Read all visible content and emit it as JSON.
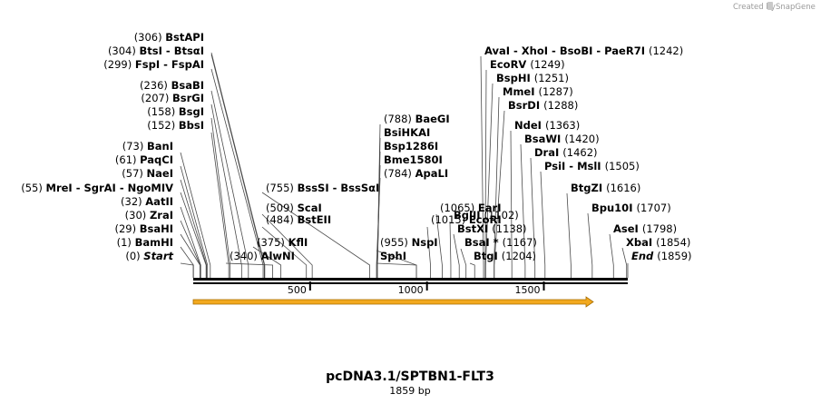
{
  "credit": {
    "text": "Created by",
    "brand": "SnapGene"
  },
  "map": {
    "title": "pcDNA3.1/SPTBN1-FLT3",
    "length_label": "1859 bp",
    "total_bp": 1859,
    "ticks": [
      "500",
      "1000",
      "1500"
    ],
    "feature_color": "#f2a91e"
  },
  "sites": [
    {
      "pos": "(306)",
      "name": "BstAPI",
      "bp": 306
    },
    {
      "pos": "(304)",
      "name": "BtsI  -  BtsαI",
      "bp": 304
    },
    {
      "pos": "(299)",
      "name": "FspI  -  FspAI",
      "bp": 299
    },
    {
      "pos": "(236)",
      "name": "BsaBI",
      "bp": 236
    },
    {
      "pos": "(207)",
      "name": "BsrGI",
      "bp": 207
    },
    {
      "pos": "(158)",
      "name": "BsgI",
      "bp": 158
    },
    {
      "pos": "(152)",
      "name": "BbsI",
      "bp": 152
    },
    {
      "pos": "(73)",
      "name": "BanI",
      "bp": 73
    },
    {
      "pos": "(61)",
      "name": "PaqCI",
      "bp": 61
    },
    {
      "pos": "(57)",
      "name": "NaeI",
      "bp": 57
    },
    {
      "pos": "(55)",
      "name": "MreI  -  SgrAI  -  NgoMIV",
      "bp": 55
    },
    {
      "pos": "(32)",
      "name": "AatII",
      "bp": 32
    },
    {
      "pos": "(30)",
      "name": "ZraI",
      "bp": 30
    },
    {
      "pos": "(29)",
      "name": "BsaHI",
      "bp": 29
    },
    {
      "pos": "(1)",
      "name": "BamHI",
      "bp": 1
    },
    {
      "pos": "(0)",
      "name": "Start",
      "bp": 0,
      "italic": true
    },
    {
      "pos": "(340)",
      "name": "AlwNI",
      "bp": 340
    },
    {
      "pos": "(375)",
      "name": "KflI",
      "bp": 375
    },
    {
      "pos": "(484)",
      "name": "BstEII",
      "bp": 484
    },
    {
      "pos": "(509)",
      "name": "ScaI",
      "bp": 509
    },
    {
      "pos": "(755)",
      "name": "BssSI  -  BssSαI",
      "bp": 755
    },
    {
      "pos": "(788)",
      "name": "BaeGI",
      "bp": 788
    },
    {
      "pos": "",
      "name": "BsiHKAI",
      "bp": 788
    },
    {
      "pos": "",
      "name": "Bsp1286I",
      "bp": 788
    },
    {
      "pos": "",
      "name": "Bme1580I",
      "bp": 788
    },
    {
      "pos": "(784)",
      "name": "ApaLI",
      "bp": 784
    },
    {
      "pos": "(955)",
      "name": "NspI",
      "bp": 955
    },
    {
      "pos": "",
      "name": "SphI",
      "bp": 955
    },
    {
      "pos": "(1015)",
      "name": "EcoRI",
      "bp": 1015
    },
    {
      "pos": "(1065)",
      "name": "EarI",
      "bp": 1065
    },
    {
      "pos": "(1102)",
      "name": "BglII",
      "bp": 1102
    },
    {
      "pos": "(1138)",
      "name": "BstXI",
      "bp": 1138
    },
    {
      "pos": "(1167)",
      "name": "BsaI *",
      "bp": 1167
    },
    {
      "pos": "(1204)",
      "name": "BtgI",
      "bp": 1204
    },
    {
      "pos": "(1242)",
      "name": "AvaI  -  XhoI  -  BsoBI  -  PaeR7I",
      "bp": 1242
    },
    {
      "pos": "(1249)",
      "name": "EcoRV",
      "bp": 1249
    },
    {
      "pos": "(1251)",
      "name": "BspHI",
      "bp": 1251
    },
    {
      "pos": "(1287)",
      "name": "MmeI",
      "bp": 1287
    },
    {
      "pos": "(1288)",
      "name": "BsrDI",
      "bp": 1288
    },
    {
      "pos": "(1363)",
      "name": "NdeI",
      "bp": 1363
    },
    {
      "pos": "(1420)",
      "name": "BsaWI",
      "bp": 1420
    },
    {
      "pos": "(1462)",
      "name": "DraI",
      "bp": 1462
    },
    {
      "pos": "(1505)",
      "name": "PsiI  -  MslI",
      "bp": 1505
    },
    {
      "pos": "(1616)",
      "name": "BtgZI",
      "bp": 1616
    },
    {
      "pos": "(1707)",
      "name": "Bpu10I",
      "bp": 1707
    },
    {
      "pos": "(1798)",
      "name": "AseI",
      "bp": 1798
    },
    {
      "pos": "(1854)",
      "name": "XbaI",
      "bp": 1854
    },
    {
      "pos": "(1859)",
      "name": "End",
      "bp": 1859,
      "italic": true
    }
  ]
}
